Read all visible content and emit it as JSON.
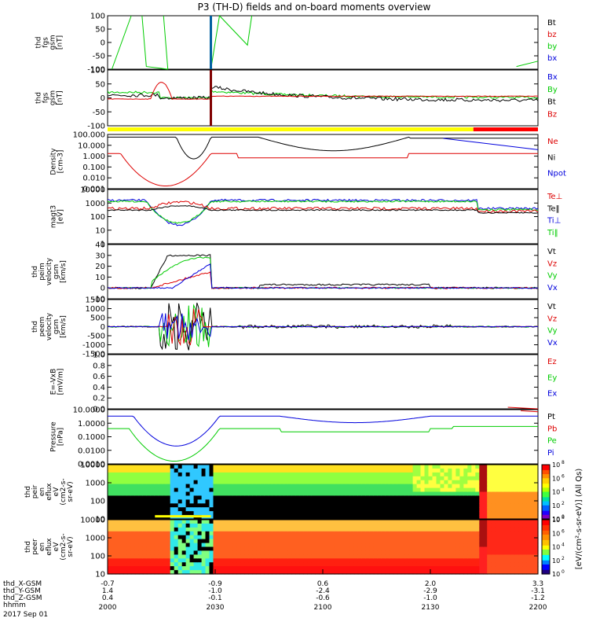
{
  "title": "P3 (TH-D) fields and on-board moments overview",
  "chart_data": {
    "type": "line",
    "x_ticks": [
      "2000",
      "2030",
      "2100",
      "2130",
      "2200"
    ],
    "x_rows": [
      {
        "label": "thd_X-GSM",
        "values": [
          "-0.7",
          "-0.9",
          "0.6",
          "2.0",
          "3.3"
        ]
      },
      {
        "label": "thd_Y-GSM",
        "values": [
          "1.4",
          "-1.0",
          "-2.4",
          "-2.9",
          "-3.1"
        ]
      },
      {
        "label": "thd_Z-GSM",
        "values": [
          "0.4",
          "-0.1",
          "-0.6",
          "-1.0",
          "-1.2"
        ]
      },
      {
        "label": "hhmm",
        "values": []
      }
    ],
    "date": "2017 Sep 01",
    "panels": [
      {
        "id": "fgs",
        "ylabel": [
          "thd",
          "fgs",
          "gsm",
          "[nT]"
        ],
        "ylim": [
          -100,
          100
        ],
        "yticks": [
          "100",
          "50",
          "0",
          "-50",
          "-100"
        ],
        "legend": [
          {
            "t": "Bt",
            "c": "#000000"
          },
          {
            "t": "bz",
            "c": "#dd0000"
          },
          {
            "t": "by",
            "c": "#00cc00"
          },
          {
            "t": "bx",
            "c": "#0000dd"
          }
        ]
      },
      {
        "id": "fgs-dsl",
        "ylabel": [
          "thd",
          "fgs",
          "gsm",
          "[nT]"
        ],
        "ylim": [
          -120,
          120
        ],
        "yticks": [
          "100",
          "50",
          "0",
          "-50",
          "-100"
        ],
        "legend": [
          {
            "t": "Bx",
            "c": "#0000dd"
          },
          {
            "t": "By",
            "c": "#00cc00"
          },
          {
            "t": "Bt",
            "c": "#000000"
          },
          {
            "t": "Bz",
            "c": "#dd0000"
          }
        ]
      },
      {
        "id": "density",
        "ylabel": [
          "Density",
          "[cm-3]"
        ],
        "yscale": "log",
        "yticks": [
          "100.000",
          "10.000",
          "1.000",
          "0.100",
          "0.010",
          "0.001"
        ],
        "legend": [
          {
            "t": "Ne",
            "c": "#dd0000"
          },
          {
            "t": "Ni",
            "c": "#000000"
          },
          {
            "t": "Npot",
            "c": "#0000dd"
          }
        ]
      },
      {
        "id": "temp",
        "ylabel": [
          "magt3",
          "[eV]"
        ],
        "yscale": "log",
        "yticks": [
          "10000",
          "1000",
          "100",
          "10",
          "1"
        ],
        "legend": [
          {
            "t": "Te⊥",
            "c": "#dd0000"
          },
          {
            "t": "Te‖",
            "c": "#000000"
          },
          {
            "t": "Ti⊥",
            "c": "#0000dd"
          },
          {
            "t": "Ti‖",
            "c": "#00cc00"
          }
        ]
      },
      {
        "id": "vi",
        "ylabel": [
          "thd",
          "peim",
          "velocity",
          "gsm",
          "[km/s]"
        ],
        "ylim": [
          -10,
          40
        ],
        "yticks": [
          "40",
          "30",
          "20",
          "10",
          "0",
          "-10"
        ],
        "legend": [
          {
            "t": "Vt",
            "c": "#000000"
          },
          {
            "t": "Vz",
            "c": "#dd0000"
          },
          {
            "t": "Vy",
            "c": "#00cc00"
          },
          {
            "t": "Vx",
            "c": "#0000dd"
          }
        ]
      },
      {
        "id": "ve",
        "ylabel": [
          "thd",
          "peem",
          "velocity",
          "gsm",
          "[km/s]"
        ],
        "ylim": [
          -1500,
          1500
        ],
        "yticks": [
          "1500",
          "1000",
          "500",
          "0",
          "-500",
          "-1000",
          "-1500"
        ],
        "legend": [
          {
            "t": "Vt",
            "c": "#000000"
          },
          {
            "t": "Vz",
            "c": "#dd0000"
          },
          {
            "t": "Vy",
            "c": "#00cc00"
          },
          {
            "t": "Vx",
            "c": "#0000dd"
          }
        ]
      },
      {
        "id": "e",
        "ylabel": [
          "E=-VxB",
          "[mV/m]"
        ],
        "ylim": [
          0,
          1
        ],
        "yticks": [
          "1.0",
          "0.8",
          "0.6",
          "0.4",
          "0.2",
          "0.0"
        ],
        "legend": [
          {
            "t": "Ez",
            "c": "#dd0000"
          },
          {
            "t": "Ey",
            "c": "#00cc00"
          },
          {
            "t": "Ex",
            "c": "#0000dd"
          }
        ]
      },
      {
        "id": "pressure",
        "ylabel": [
          "Pressure",
          "[nPa]"
        ],
        "yscale": "log",
        "yticks": [
          "10.0000",
          "1.0000",
          "0.1000",
          "0.0100",
          "0.0010"
        ],
        "legend": [
          {
            "t": "Pt",
            "c": "#000000"
          },
          {
            "t": "Pb",
            "c": "#dd0000"
          },
          {
            "t": "Pe",
            "c": "#00cc00"
          },
          {
            "t": "Pi",
            "c": "#0000dd"
          }
        ]
      },
      {
        "id": "ions",
        "ylabel": [
          "thd",
          "peir",
          "en",
          "eflux",
          "eV",
          "(cm2-s-",
          "sr-eV)"
        ],
        "yscale": "log",
        "yticks": [
          "10000",
          "1000",
          "100",
          "10"
        ],
        "spectrogram": true
      },
      {
        "id": "electrons",
        "ylabel": [
          "thd",
          "peer",
          "en",
          "eflux",
          "eV",
          "(cm2-s-",
          "sr-eV)"
        ],
        "yscale": "log",
        "yticks": [
          "10000",
          "1000",
          "100",
          "10"
        ],
        "spectrogram": true
      }
    ],
    "colorbar": {
      "label": "[eV/(cm²-s-sr-eV)] (All Qs)",
      "top_ticks": [
        "8",
        "6",
        "4",
        "2",
        "0"
      ],
      "bottom_ticks": [
        "8",
        "6",
        "4",
        "2",
        "0"
      ]
    },
    "mode_bar": {
      "colors": [
        "#ffff00",
        "#ff0000"
      ],
      "switch_fraction": 0.85
    }
  }
}
